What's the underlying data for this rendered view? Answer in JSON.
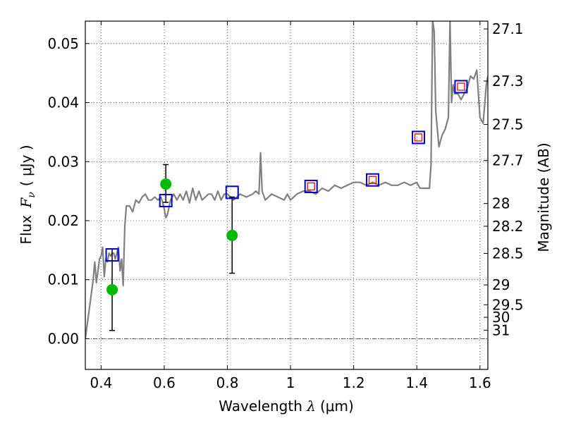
{
  "chart_data": {
    "type": "scatter",
    "title": "",
    "xlabel": "Wavelength λ (μm)",
    "xlabel_parts": {
      "text": "Wavelength ",
      "symbol": "λ",
      "unit": "(μm)"
    },
    "ylabel": "Flux F_ν (μJy)",
    "ylabel_parts": {
      "text": "Flux ",
      "symbol": "F",
      "sub": "ν",
      "unit": "( μJy )"
    },
    "y2label": "Magnitude (AB)",
    "xlim": [
      0.35,
      1.625
    ],
    "ylim": [
      -0.0052,
      0.0538
    ],
    "grid": true,
    "x_ticks": [
      {
        "value": 0.4,
        "label": "0.4"
      },
      {
        "value": 0.6,
        "label": "0.6"
      },
      {
        "value": 0.8,
        "label": "0.8"
      },
      {
        "value": 1.0,
        "label": "1"
      },
      {
        "value": 1.2,
        "label": "1.2"
      },
      {
        "value": 1.4,
        "label": "1.4"
      },
      {
        "value": 1.6,
        "label": "1.6"
      }
    ],
    "y_ticks": [
      {
        "value": 0.0,
        "label": "0.00"
      },
      {
        "value": 0.01,
        "label": "0.01"
      },
      {
        "value": 0.02,
        "label": "0.02"
      },
      {
        "value": 0.03,
        "label": "0.03"
      },
      {
        "value": 0.04,
        "label": "0.04"
      },
      {
        "value": 0.05,
        "label": "0.05"
      }
    ],
    "y2_ticks": [
      {
        "value": 27.1,
        "label": "27.1"
      },
      {
        "value": 27.3,
        "label": "27.3"
      },
      {
        "value": 27.5,
        "label": "27.5"
      },
      {
        "value": 27.7,
        "label": "27.7"
      },
      {
        "value": 28,
        "label": "28"
      },
      {
        "value": 28.2,
        "label": "28.2"
      },
      {
        "value": 28.5,
        "label": "28.5"
      },
      {
        "value": 29,
        "label": "29"
      },
      {
        "value": 29.5,
        "label": "29.5"
      },
      {
        "value": 30,
        "label": "30"
      },
      {
        "value": 31,
        "label": "31"
      }
    ],
    "series": [
      {
        "kind": "line",
        "color": "#808080",
        "x": [
          0.35,
          0.36,
          0.37,
          0.375,
          0.38,
          0.385,
          0.39,
          0.395,
          0.4,
          0.405,
          0.41,
          0.415,
          0.42,
          0.425,
          0.43,
          0.435,
          0.44,
          0.445,
          0.45,
          0.455,
          0.46,
          0.465,
          0.47,
          0.475,
          0.48,
          0.49,
          0.5,
          0.51,
          0.52,
          0.53,
          0.54,
          0.55,
          0.56,
          0.57,
          0.58,
          0.59,
          0.6,
          0.605,
          0.61,
          0.62,
          0.63,
          0.64,
          0.65,
          0.66,
          0.67,
          0.68,
          0.69,
          0.7,
          0.71,
          0.72,
          0.73,
          0.74,
          0.75,
          0.76,
          0.77,
          0.78,
          0.79,
          0.8,
          0.82,
          0.84,
          0.86,
          0.88,
          0.89,
          0.9,
          0.905,
          0.91,
          0.92,
          0.94,
          0.96,
          0.98,
          0.99,
          1.0,
          1.02,
          1.04,
          1.06,
          1.08,
          1.1,
          1.12,
          1.14,
          1.16,
          1.18,
          1.2,
          1.22,
          1.24,
          1.26,
          1.28,
          1.3,
          1.32,
          1.34,
          1.36,
          1.38,
          1.4,
          1.41,
          1.42,
          1.44,
          1.445,
          1.45,
          1.455,
          1.46,
          1.47,
          1.48,
          1.49,
          1.5,
          1.505,
          1.51,
          1.515,
          1.52,
          1.53,
          1.54,
          1.55,
          1.56,
          1.57,
          1.58,
          1.59,
          1.6,
          1.61,
          1.62,
          1.625
        ],
        "y": [
          0.0,
          0.004,
          0.008,
          0.01,
          0.013,
          0.0095,
          0.0115,
          0.0135,
          0.014,
          0.0155,
          0.0105,
          0.0135,
          0.013,
          0.0145,
          0.014,
          0.0145,
          0.0145,
          0.0135,
          0.0145,
          0.0155,
          0.0115,
          0.0135,
          0.009,
          0.019,
          0.0225,
          0.0225,
          0.0215,
          0.0235,
          0.023,
          0.024,
          0.0245,
          0.0235,
          0.0235,
          0.024,
          0.0235,
          0.024,
          0.022,
          0.0205,
          0.021,
          0.0235,
          0.0245,
          0.0235,
          0.0245,
          0.0235,
          0.025,
          0.023,
          0.0255,
          0.0235,
          0.025,
          0.0235,
          0.024,
          0.0245,
          0.0245,
          0.0235,
          0.025,
          0.0235,
          0.0245,
          0.0245,
          0.0235,
          0.0245,
          0.024,
          0.0245,
          0.025,
          0.0245,
          0.0315,
          0.025,
          0.0235,
          0.0245,
          0.024,
          0.0235,
          0.0245,
          0.0235,
          0.0245,
          0.025,
          0.025,
          0.0245,
          0.0255,
          0.025,
          0.026,
          0.0255,
          0.026,
          0.0265,
          0.0265,
          0.026,
          0.0265,
          0.026,
          0.0265,
          0.026,
          0.026,
          0.0265,
          0.026,
          0.0265,
          0.0255,
          0.0255,
          0.0255,
          0.0295,
          0.054,
          0.052,
          0.0385,
          0.0325,
          0.0345,
          0.0355,
          0.0375,
          0.054,
          0.04,
          0.043,
          0.0415,
          0.0415,
          0.0405,
          0.0415,
          0.0425,
          0.0445,
          0.044,
          0.0455,
          0.0375,
          0.0365,
          0.043,
          0.0445
        ]
      },
      {
        "kind": "errorbar",
        "color": "#00bb00",
        "marker": "circle",
        "x": [
          0.435,
          0.605,
          0.815
        ],
        "y": [
          0.0083,
          0.0262,
          0.0175
        ],
        "yerr_low": [
          0.0069,
          0.0031,
          0.0064
        ],
        "yerr_high": [
          0.0069,
          0.0033,
          0.0065
        ]
      },
      {
        "kind": "scatter",
        "color": "#0000cc",
        "marker": "open-square",
        "x": [
          0.435,
          0.605,
          0.815,
          1.065,
          1.26,
          1.405,
          1.54
        ],
        "y": [
          0.0142,
          0.0234,
          0.0248,
          0.0258,
          0.0269,
          0.0341,
          0.0427
        ]
      },
      {
        "kind": "scatter",
        "color": "#ee0000",
        "marker": "small-open-square",
        "x": [
          1.065,
          1.26,
          1.405,
          1.54
        ],
        "y": [
          0.0258,
          0.0269,
          0.0341,
          0.0427
        ]
      }
    ]
  }
}
